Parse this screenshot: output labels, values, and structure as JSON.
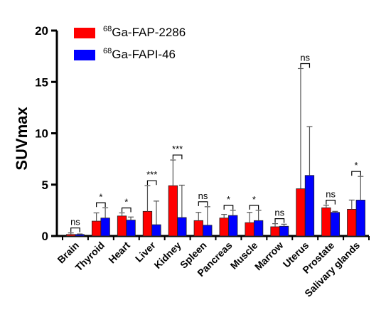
{
  "chart_data": {
    "type": "bar",
    "ylabel": "SUVmax",
    "ylim": [
      0,
      20
    ],
    "yticks": [
      "0",
      "5",
      "10",
      "15",
      "20"
    ],
    "legend_position": "top-left",
    "categories": [
      "Brain",
      "Thyroid",
      "Heart",
      "Liver",
      "Kidney",
      "Spleen",
      "Pancreas",
      "Muscle",
      "Marrow",
      "Uterus",
      "Prostate",
      "Salivary glands"
    ],
    "series": [
      {
        "name": "68Ga-FAP-2286",
        "legend_sup": "68",
        "legend_text": "Ga-FAP-2286",
        "color": "#ff0000",
        "values": [
          0.15,
          1.45,
          1.95,
          2.4,
          4.9,
          1.5,
          1.75,
          1.3,
          0.9,
          4.6,
          2.75,
          2.6
        ],
        "errors": [
          0.15,
          0.8,
          0.3,
          2.5,
          2.5,
          0.8,
          0.35,
          1.0,
          0.3,
          11.7,
          0.25,
          0.9
        ]
      },
      {
        "name": "68Ga-FAPI-46",
        "legend_sup": "68",
        "legend_text": "Ga-FAPI-46",
        "color": "#0000ff",
        "values": [
          0.15,
          1.75,
          1.55,
          1.1,
          1.8,
          1.05,
          2.0,
          1.5,
          0.95,
          5.9,
          2.3,
          3.5
        ],
        "errors": [
          0.05,
          1.0,
          0.3,
          2.3,
          3.15,
          1.8,
          0.5,
          1.0,
          0.2,
          4.75,
          0.1,
          2.3
        ]
      }
    ],
    "significance": [
      "ns",
      "*",
      "*",
      "***",
      "***",
      "ns",
      "*",
      "*",
      "ns",
      "ns",
      "ns",
      "*"
    ]
  }
}
